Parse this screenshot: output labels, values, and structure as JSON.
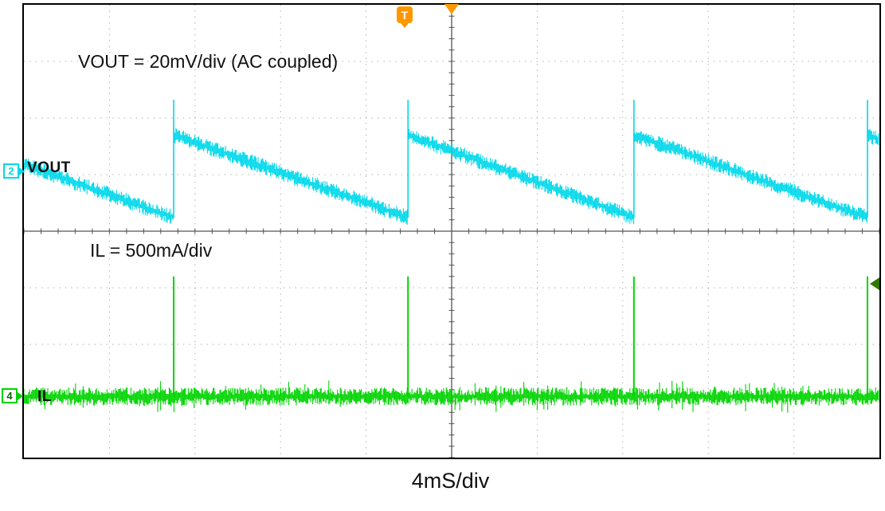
{
  "annotations": {
    "vout_scale": "VOUT = 20mV/div (AC coupled)",
    "il_scale": "IL = 500mA/div",
    "timebase": "4mS/div",
    "vout_label": "VOUT",
    "il_label": "IL",
    "ch2_badge": "2",
    "ch4_badge": "4",
    "trigger_badge": "T"
  },
  "chart_data": {
    "type": "line",
    "instrument": "oscilloscope screenshot",
    "timebase_label": "4mS/div",
    "timebase_ms_per_div": 4,
    "x_range_ms": [
      0,
      40
    ],
    "grid_divisions": {
      "x": 10,
      "y": 8
    },
    "grid": "dotted division lines with solid center crosshair",
    "pulse_times_div": [
      1.75,
      4.49,
      7.13,
      9.86
    ],
    "pulse_times_ms": [
      7.0,
      18.0,
      28.5,
      39.4
    ],
    "pulse_period_div_approx": 2.72,
    "pulse_period_ms_approx": 10.9,
    "series": [
      {
        "channel": "2",
        "name": "VOUT",
        "scale": "20mV/div",
        "coupling": "AC coupled",
        "color": "#00d8ea",
        "pattern": "noisy falling sawtooth ripple with fast rising edge at each switching pulse",
        "ramp_top_div": 2.3,
        "ramp_bottom_div": 3.76,
        "edge_spike_top_div": 1.68,
        "noise_halfwidth_div": 0.14,
        "ripple_pkpk_mV_approx": 29,
        "edge_spike_mV_approx": 42,
        "marker_y_div": 2.95
      },
      {
        "channel": "4",
        "name": "IL",
        "scale": "500mA/div",
        "coupling": "",
        "color": "#00d400",
        "pattern": "noisy flat baseline with narrow current pulses aligned to VOUT rising edges",
        "baseline_div": 6.92,
        "pulse_top_div": 4.8,
        "noise_halfwidth_div": 0.16,
        "baseline_mA": 0,
        "pulse_amplitude_mA_approx": 1060,
        "marker_y_div": 6.92
      }
    ],
    "trigger": {
      "t_flag_x_div": 4.45,
      "top_triangle_x_div": 5.0,
      "right_arrow_y_div": 4.93,
      "color": "#ff9800",
      "right_arrow_color": "#337700"
    }
  }
}
